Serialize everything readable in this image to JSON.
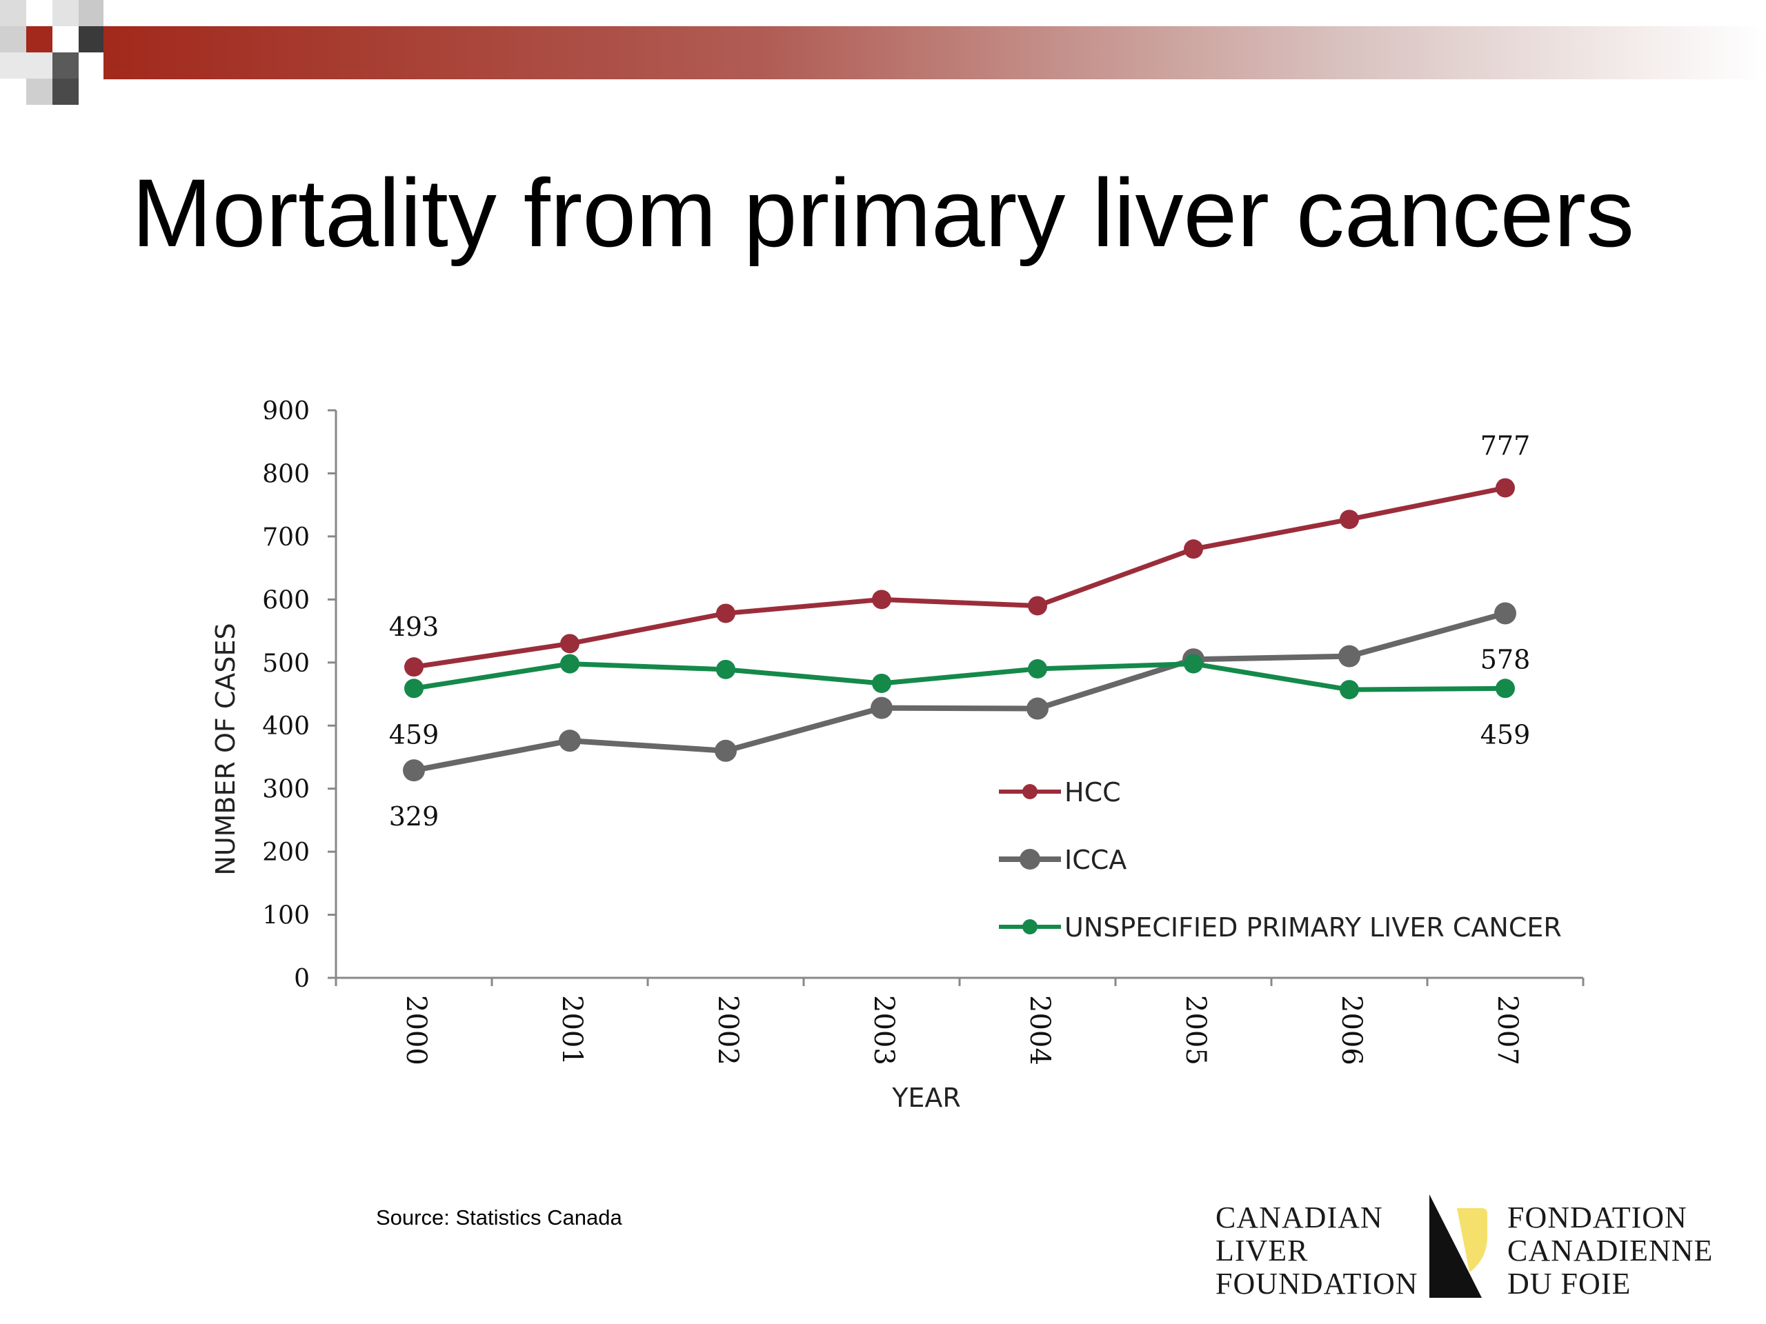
{
  "slide": {
    "title": "Mortality from primary liver cancers",
    "source": "Source: Statistics Canada"
  },
  "logo": {
    "left_lines": [
      "CANADIAN",
      "LIVER",
      "FOUNDATION"
    ],
    "right_lines": [
      "FONDATION",
      "CANADIENNE",
      "DU FOIE"
    ]
  },
  "colors": {
    "hcc": "#9b2d3a",
    "icca": "#676767",
    "unspecified": "#14894a",
    "header_red": "#a2291c",
    "logo_yellow": "#f5e06b"
  },
  "chart_data": {
    "type": "line",
    "title": "",
    "xlabel": "YEAR",
    "ylabel": "NUMBER OF CASES",
    "categories": [
      "2000",
      "2001",
      "2002",
      "2003",
      "2004",
      "2005",
      "2006",
      "2007"
    ],
    "ylim": [
      0,
      900
    ],
    "yticks": [
      "0",
      "100",
      "200",
      "300",
      "400",
      "500",
      "600",
      "700",
      "800",
      "900"
    ],
    "series": [
      {
        "name": "HCC",
        "values": [
          493,
          530,
          578,
          600,
          590,
          680,
          727,
          777
        ]
      },
      {
        "name": "ICCA",
        "values": [
          329,
          376,
          360,
          428,
          427,
          505,
          510,
          578
        ]
      },
      {
        "name": "UNSPECIFIED PRIMARY LIVER CANCER",
        "values": [
          459,
          498,
          489,
          467,
          490,
          498,
          457,
          459
        ]
      }
    ],
    "data_labels": [
      {
        "series": "HCC",
        "index": 0,
        "text": "493"
      },
      {
        "series": "HCC",
        "index": 7,
        "text": "777"
      },
      {
        "series": "UNSPECIFIED PRIMARY LIVER CANCER",
        "index": 0,
        "text": "459"
      },
      {
        "series": "ICCA",
        "index": 0,
        "text": "329"
      },
      {
        "series": "ICCA",
        "index": 7,
        "text": "578"
      },
      {
        "series": "UNSPECIFIED PRIMARY LIVER CANCER",
        "index": 7,
        "text": "459"
      }
    ],
    "legend_position": "bottom-right inside plot",
    "grid": false
  }
}
